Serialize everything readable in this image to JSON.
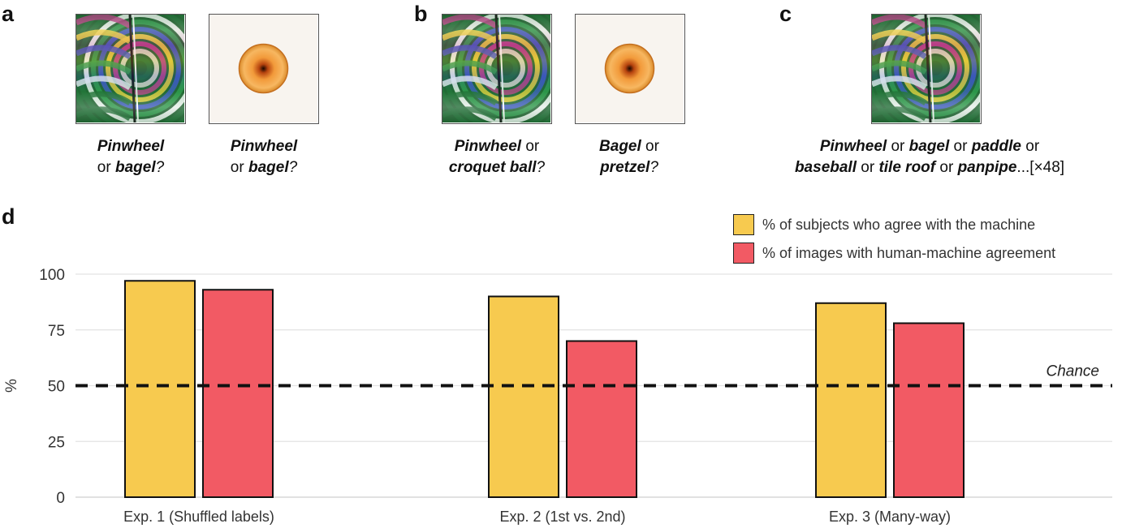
{
  "panels": {
    "a": {
      "letter": "a",
      "items": [
        {
          "word1": "Pinwheel",
          "mid": "",
          "word2": "or ",
          "word3": "bagel",
          "end": "?"
        },
        {
          "word1": "Pinwheel",
          "mid": "",
          "word2": "or ",
          "word3": "bagel",
          "end": "?"
        }
      ]
    },
    "b": {
      "letter": "b",
      "items": [
        {
          "word1": "Pinwheel",
          "mid": " or",
          "word2": "",
          "word3": "croquet ball",
          "end": "?"
        },
        {
          "word1": "Bagel",
          "mid": " or",
          "word2": "",
          "word3": "pretzel",
          "end": "?"
        }
      ]
    },
    "c": {
      "letter": "c",
      "line1": [
        {
          "t": "Pinwheel",
          "b": true
        },
        {
          "t": " or ",
          "b": false
        },
        {
          "t": "bagel",
          "b": true
        },
        {
          "t": " or ",
          "b": false
        },
        {
          "t": "paddle",
          "b": true
        },
        {
          "t": " or",
          "b": false
        }
      ],
      "line2": [
        {
          "t": "baseball",
          "b": true
        },
        {
          "t": " or ",
          "b": false
        },
        {
          "t": "tile roof",
          "b": true
        },
        {
          "t": " or ",
          "b": false
        },
        {
          "t": "panpipe",
          "b": true
        },
        {
          "t": "...[×48]",
          "b": false
        }
      ]
    },
    "d": {
      "letter": "d"
    }
  },
  "legend": [
    {
      "label": "% of subjects who agree with the machine",
      "color": "#f7ca4f"
    },
    {
      "label": "% of images with human-machine agreement",
      "color": "#f25a64"
    }
  ],
  "chart_data": {
    "type": "bar",
    "categories": [
      "Exp. 1 (Shuffled labels)",
      "Exp. 2 (1st vs. 2nd)",
      "Exp. 3 (Many-way)"
    ],
    "series": [
      {
        "name": "% of subjects who agree with the machine",
        "values": [
          97,
          90,
          87
        ],
        "color": "#f7ca4f"
      },
      {
        "name": "% of images with human-machine agreement",
        "values": [
          93,
          70,
          78
        ],
        "color": "#f25a64"
      }
    ],
    "ylabel": "%",
    "yticks": [
      0,
      25,
      50,
      75,
      100
    ],
    "ylim": [
      0,
      100
    ],
    "grid": true,
    "reference_line": {
      "value": 50,
      "label": "Chance",
      "style": "dashed"
    }
  }
}
